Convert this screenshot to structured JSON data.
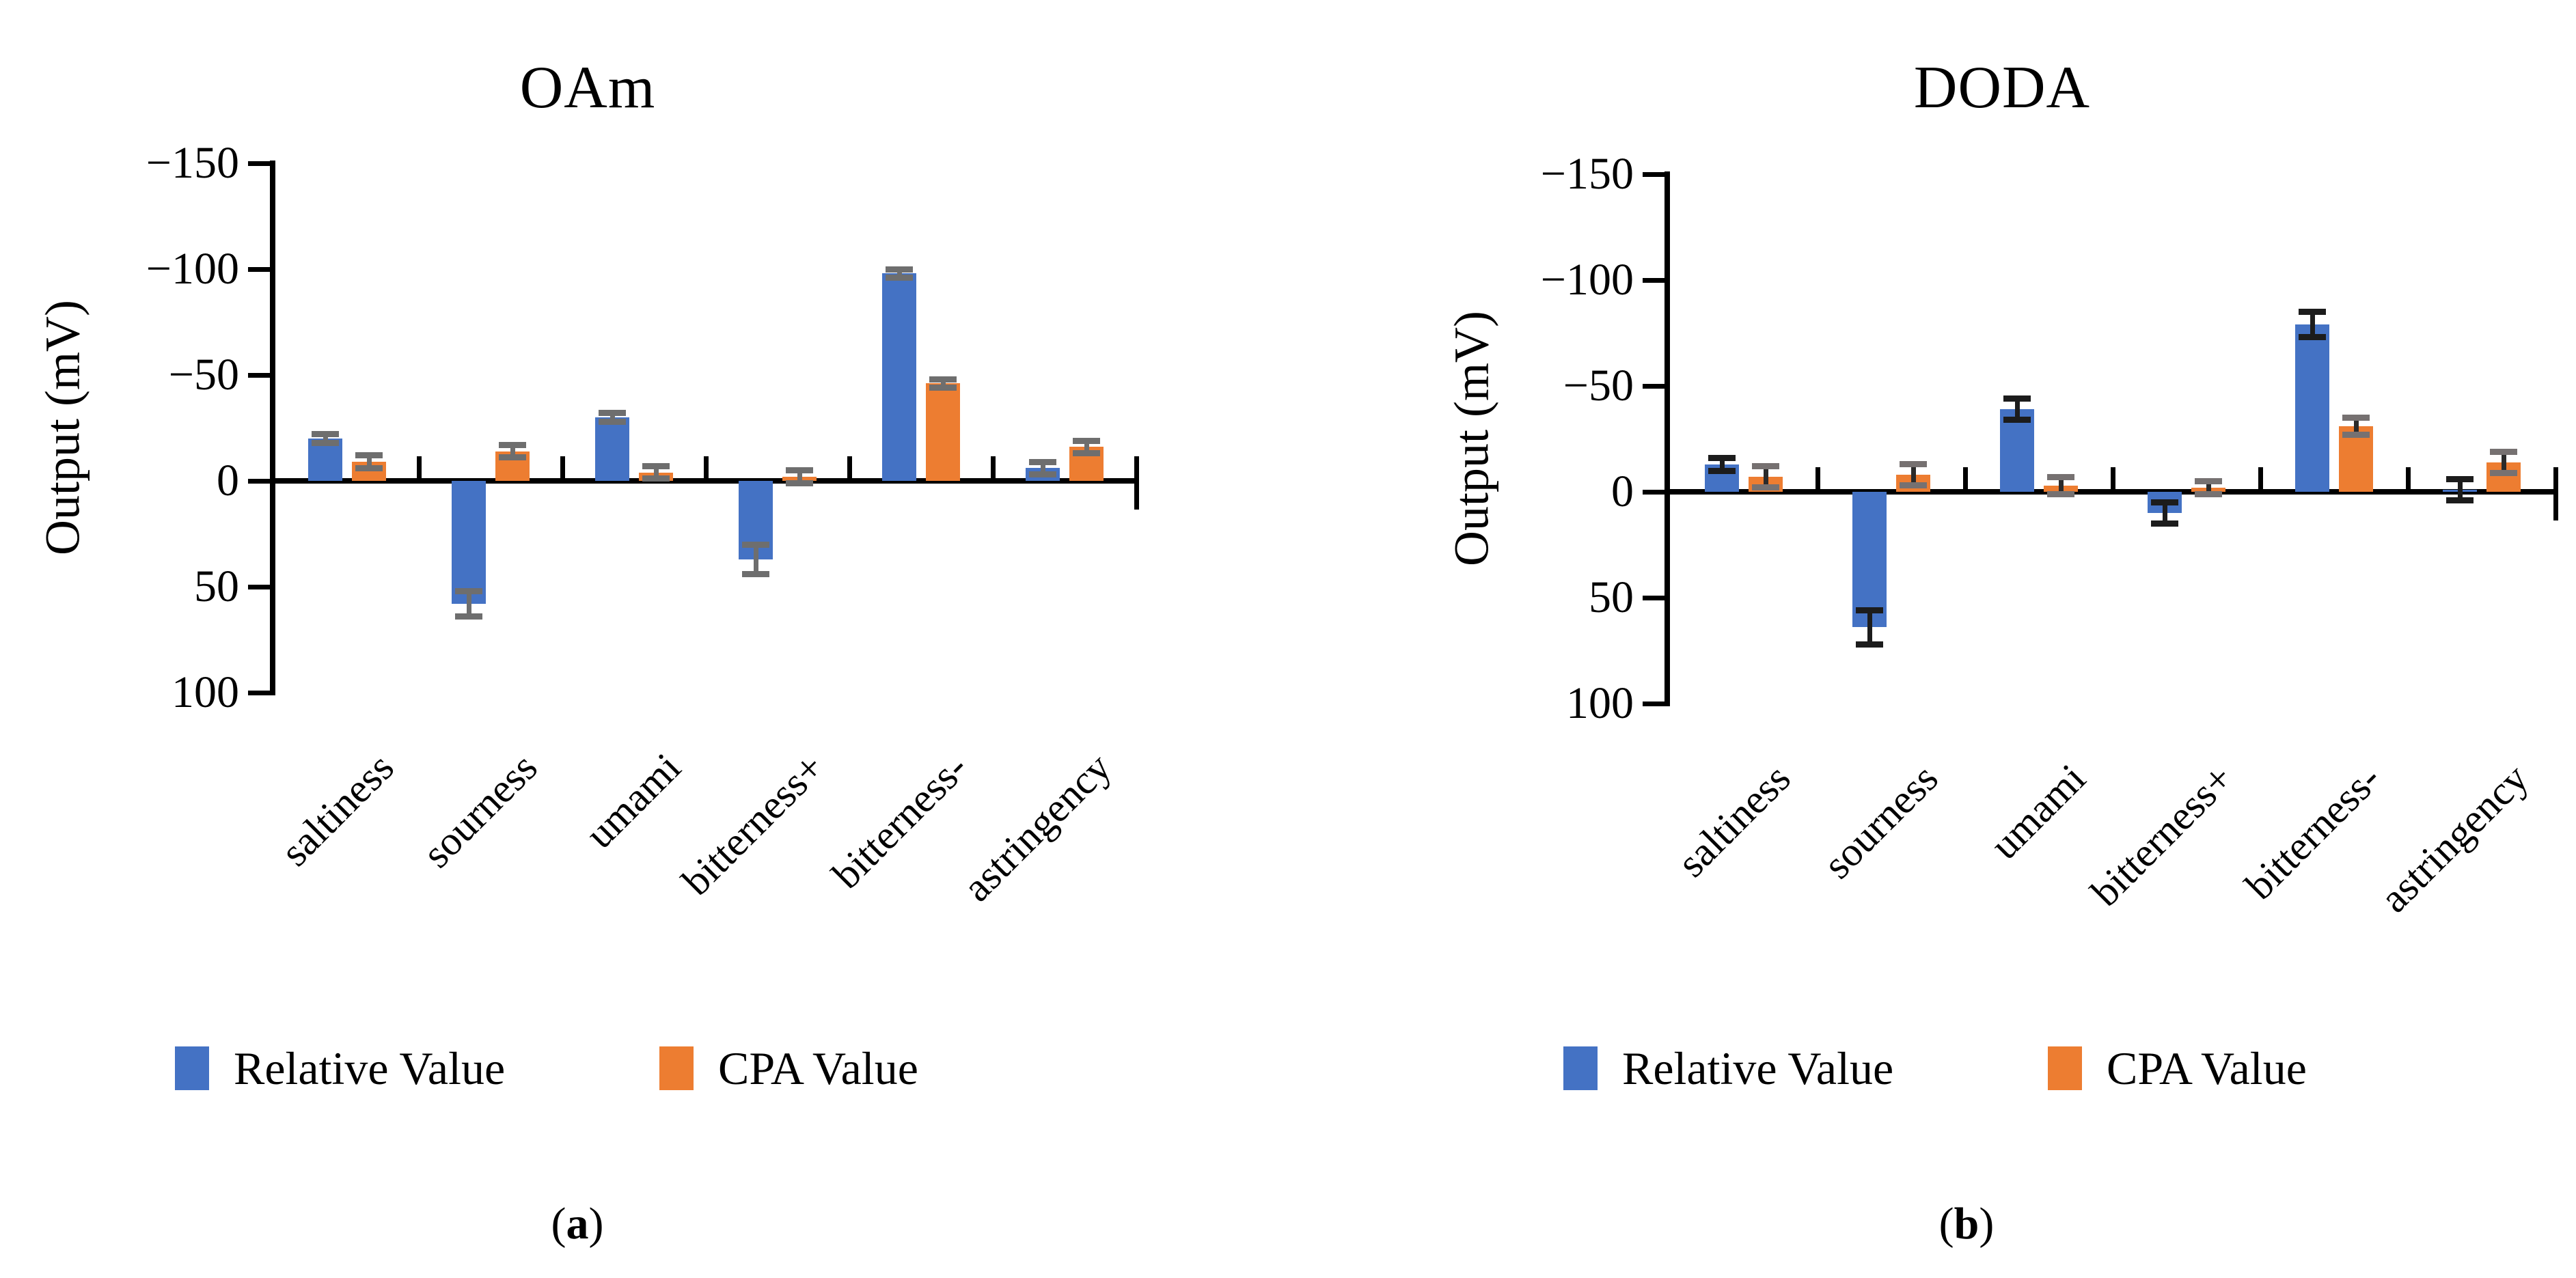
{
  "figure": {
    "background": "#ffffff",
    "accent_blue": "#4472C4",
    "accent_orange": "#ED7D31"
  },
  "chart_data": [
    {
      "type": "bar",
      "id": "a",
      "title": "OAm",
      "ylabel": "Output (mV)",
      "caption": {
        "open": "(",
        "letter": "a",
        "close": ")"
      },
      "axis": {
        "ylim": [
          -150,
          100
        ],
        "inverted": true,
        "grid": false,
        "tick_step": 50
      },
      "y_ticks": [
        "−150",
        "−100",
        "−50",
        "0",
        "50",
        "100"
      ],
      "categories": [
        "saltiness",
        "sourness",
        "umami",
        "bitterness+",
        "bitterness-",
        "astringency"
      ],
      "legend_position": "bottom",
      "series": [
        {
          "name": "Relative Value",
          "color": "#4472C4",
          "values": [
            -20,
            58,
            -30,
            37,
            -98,
            -6
          ],
          "errors": [
            2,
            6,
            2,
            7,
            2,
            3
          ],
          "error_line_color": "#6e6e6e",
          "error_cap_color": "#6e6e6e"
        },
        {
          "name": "CPA Value",
          "color": "#ED7D31",
          "values": [
            -9,
            -14,
            -4,
            -2,
            -46,
            -16
          ],
          "errors": [
            3,
            3,
            3,
            3,
            2,
            3
          ],
          "error_line_color": "#6e6e6e",
          "error_cap_color": "#6e6e6e"
        }
      ]
    },
    {
      "type": "bar",
      "id": "b",
      "title": "DODA",
      "ylabel": "Output (mV)",
      "caption": {
        "open": "(",
        "letter": "b",
        "close": ")"
      },
      "axis": {
        "ylim": [
          -150,
          100
        ],
        "inverted": true,
        "grid": false,
        "tick_step": 50
      },
      "y_ticks": [
        "−150",
        "−100",
        "−50",
        "0",
        "50",
        "100"
      ],
      "categories": [
        "saltiness",
        "sourness",
        "umami",
        "bitterness+",
        "bitterness-",
        "astringency"
      ],
      "legend_position": "bottom",
      "series": [
        {
          "name": "Relative Value",
          "color": "#4472C4",
          "values": [
            -13,
            64,
            -39,
            10,
            -79,
            -1
          ],
          "errors": [
            3,
            8,
            5,
            5,
            6,
            5
          ],
          "error_line_color": "#1c1c1c",
          "error_cap_color": "#1c1c1c"
        },
        {
          "name": "CPA Value",
          "color": "#ED7D31",
          "values": [
            -7,
            -8,
            -3,
            -2,
            -31,
            -14
          ],
          "errors": [
            5,
            5,
            4,
            3,
            4,
            5
          ],
          "error_line_color": "#2b2b2b",
          "error_cap_color": "#767171"
        }
      ]
    }
  ]
}
